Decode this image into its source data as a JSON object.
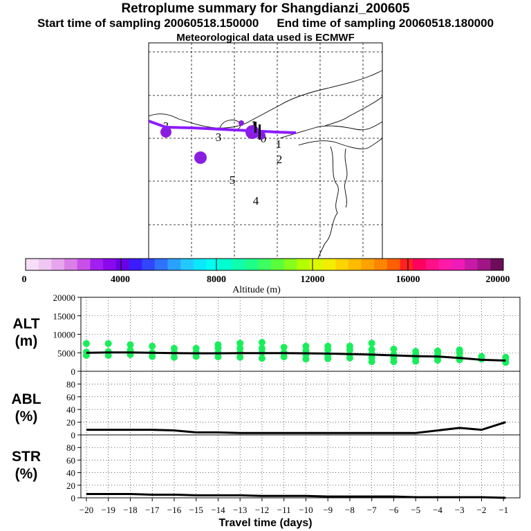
{
  "header": {
    "title": "Retroplume summary for Shangdianzi_200605",
    "start_time": "Start time of sampling 20060518.150000",
    "end_time": "End time of sampling 20060518.180000",
    "met_data": "Meteorological data used is ECMWF"
  },
  "map": {
    "labels": [
      "0",
      "1",
      "2",
      "3",
      "4",
      "5",
      "1",
      "2",
      "3"
    ],
    "colors": {
      "track": "#8c1bff",
      "cluster": "#8a1ee0",
      "coast": "#000000",
      "grid": "#000000"
    }
  },
  "colorbar": {
    "tick_labels": [
      "0",
      "4000",
      "8000",
      "12000",
      "16000",
      "20000"
    ],
    "label": "Altitude (m)",
    "min": 0,
    "max": 20000,
    "colors": [
      "#f7def7",
      "#f0c6f2",
      "#e6a6ee",
      "#da7ee8",
      "#c850e8",
      "#a21ff0",
      "#8a08ec",
      "#6a00e6",
      "#3c1cff",
      "#3046ff",
      "#2f72ff",
      "#2aa0ff",
      "#22c8ff",
      "#0ae8ff",
      "#00fff0",
      "#00ffce",
      "#10ffad",
      "#1eff8a",
      "#3cff62",
      "#5aff3c",
      "#86ff1c",
      "#b4ff00",
      "#ddf900",
      "#f3ee00",
      "#ffd400",
      "#ffbb00",
      "#ffa100",
      "#ff8400",
      "#ff5f00",
      "#ff2222",
      "#ff0060",
      "#ff1086",
      "#ff1ba8",
      "#f01ab8",
      "#c81aa6",
      "#a01686",
      "#6d0d5a"
    ]
  },
  "chart_data": [
    {
      "type": "scatter",
      "name": "ALT",
      "ylabel": "ALT\n(m)",
      "ylabel_lines": [
        "ALT",
        "(m)"
      ],
      "ylim": [
        0,
        20000
      ],
      "yticks": [
        0,
        5000,
        10000,
        15000,
        20000
      ],
      "xlim": [
        -20.25,
        -0.25
      ],
      "x": [
        -20,
        -19,
        -18,
        -17,
        -16,
        -15,
        -14,
        -13,
        -12,
        -11,
        -10,
        -9,
        -8,
        -7,
        -6,
        -5,
        -4,
        -3,
        -2,
        -0.9
      ],
      "median_line": [
        5000,
        5100,
        5100,
        5000,
        4900,
        4850,
        4850,
        4900,
        4900,
        4900,
        4850,
        4800,
        4650,
        4500,
        4300,
        4100,
        4000,
        3600,
        3100,
        2900
      ],
      "points": [
        [
          -20,
          4300
        ],
        [
          -20,
          5200
        ],
        [
          -20,
          7500
        ],
        [
          -19,
          4300
        ],
        [
          -19,
          5300
        ],
        [
          -19,
          7500
        ],
        [
          -18,
          4500
        ],
        [
          -18,
          5700
        ],
        [
          -18,
          7200
        ],
        [
          -17,
          4000
        ],
        [
          -17,
          5000
        ],
        [
          -17,
          6800
        ],
        [
          -16,
          3800
        ],
        [
          -16,
          5000
        ],
        [
          -16,
          6200
        ],
        [
          -15,
          4000
        ],
        [
          -15,
          5000
        ],
        [
          -15,
          6200
        ],
        [
          -14,
          3900
        ],
        [
          -14,
          5000
        ],
        [
          -14,
          6300
        ],
        [
          -14,
          7200
        ],
        [
          -13,
          3800
        ],
        [
          -13,
          5000
        ],
        [
          -13,
          6200
        ],
        [
          -13,
          7600
        ],
        [
          -12,
          3500
        ],
        [
          -12,
          5000
        ],
        [
          -12,
          6200
        ],
        [
          -12,
          7800
        ],
        [
          -11,
          3900
        ],
        [
          -11,
          5000
        ],
        [
          -11,
          6500
        ],
        [
          -10,
          3300
        ],
        [
          -10,
          4500
        ],
        [
          -10,
          5600
        ],
        [
          -10,
          6800
        ],
        [
          -9,
          3400
        ],
        [
          -9,
          4300
        ],
        [
          -9,
          5800
        ],
        [
          -9,
          6800
        ],
        [
          -8,
          3600
        ],
        [
          -8,
          4500
        ],
        [
          -8,
          5800
        ],
        [
          -8,
          6800
        ],
        [
          -7,
          2600
        ],
        [
          -7,
          3700
        ],
        [
          -7,
          4700
        ],
        [
          -7,
          5900
        ],
        [
          -7,
          7600
        ],
        [
          -6,
          2600
        ],
        [
          -6,
          3700
        ],
        [
          -6,
          4500
        ],
        [
          -6,
          6000
        ],
        [
          -5,
          2700
        ],
        [
          -5,
          3600
        ],
        [
          -5,
          4500
        ],
        [
          -5,
          5400
        ],
        [
          -4,
          3000
        ],
        [
          -4,
          3700
        ],
        [
          -4,
          4600
        ],
        [
          -4,
          5500
        ],
        [
          -3,
          3100
        ],
        [
          -3,
          3900
        ],
        [
          -3,
          5000
        ],
        [
          -3,
          5800
        ],
        [
          -2,
          3300
        ],
        [
          -2,
          4000
        ],
        [
          -0.9,
          2400
        ],
        [
          -0.9,
          3200
        ],
        [
          -0.9,
          3800
        ]
      ]
    },
    {
      "type": "line",
      "name": "ABL",
      "ylabel_lines": [
        "ABL",
        "(%)"
      ],
      "ylim": [
        0,
        100
      ],
      "yticks": [
        0,
        20,
        40,
        60,
        80
      ],
      "xlim": [
        -20.25,
        -0.25
      ],
      "x": [
        -20,
        -19,
        -18,
        -17,
        -16,
        -15,
        -14,
        -13,
        -12,
        -11,
        -10,
        -9,
        -8,
        -7,
        -6,
        -5,
        -4,
        -3,
        -2,
        -0.9
      ],
      "values": [
        8,
        8,
        8,
        8,
        7,
        4,
        4,
        3,
        3,
        3,
        3,
        3,
        3,
        3,
        3,
        3,
        7,
        11,
        8,
        20
      ]
    },
    {
      "type": "line",
      "name": "STR",
      "ylabel_lines": [
        "STR",
        "(%)"
      ],
      "ylim": [
        0,
        100
      ],
      "yticks": [
        0,
        20,
        40,
        60,
        80
      ],
      "xlim": [
        -20.25,
        -0.25
      ],
      "x": [
        -20,
        -19,
        -18,
        -17,
        -16,
        -15,
        -14,
        -13,
        -12,
        -11,
        -10,
        -9,
        -8,
        -7,
        -6,
        -5,
        -4,
        -3,
        -2,
        -0.9
      ],
      "values": [
        6,
        6,
        6,
        5,
        5,
        4,
        4,
        4,
        3,
        3,
        3,
        2,
        2,
        2,
        2,
        1,
        1,
        1,
        1,
        0
      ],
      "xlabel": "Travel time (days)",
      "xticks": [
        -20,
        -19,
        -18,
        -17,
        -16,
        -15,
        -14,
        -13,
        -12,
        -11,
        -10,
        -9,
        -8,
        -7,
        -6,
        -5,
        -4,
        -3,
        -2,
        -1
      ],
      "xtick_labels": [
        "−20",
        "−19",
        "−18",
        "−17",
        "−16",
        "−15",
        "−14",
        "−13",
        "−12",
        "−11",
        "−10",
        "−9",
        "−8",
        "−7",
        "−6",
        "−5",
        "−4",
        "−3",
        "−2",
        "−1"
      ]
    }
  ]
}
